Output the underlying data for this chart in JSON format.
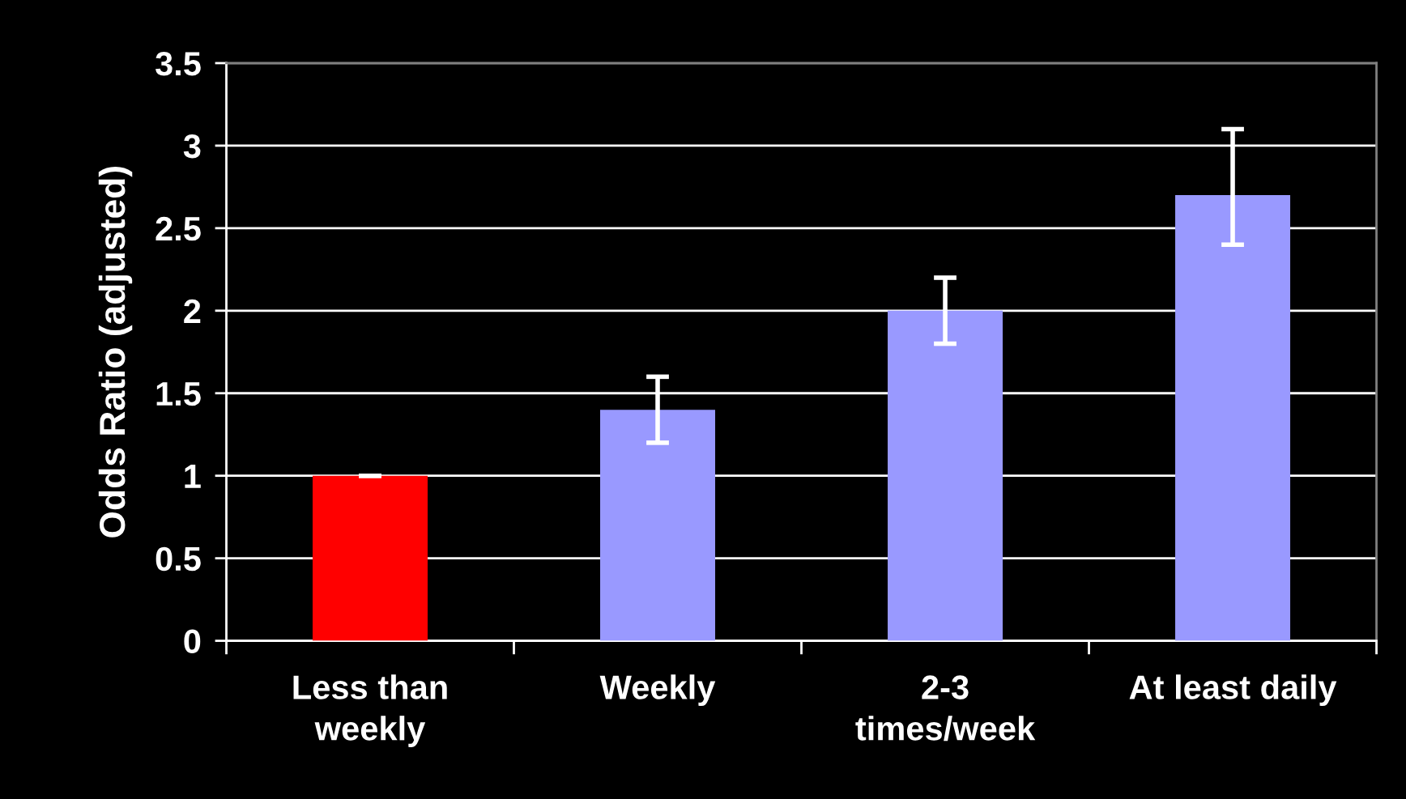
{
  "chart_data": {
    "type": "bar",
    "ylabel": "Odds Ratio (adjusted)",
    "categories": [
      "Less than\nweekly",
      "Weekly",
      "2-3\ntimes/week",
      "At least daily"
    ],
    "values": [
      1.0,
      1.4,
      2.0,
      2.7
    ],
    "colors": [
      "#ff0000",
      "#9999ff",
      "#9999ff",
      "#9999ff"
    ],
    "errors": [
      [
        1.0,
        1.0
      ],
      [
        1.2,
        1.6
      ],
      [
        1.8,
        2.2
      ],
      [
        2.4,
        3.1
      ]
    ],
    "ylim": [
      0,
      3.5
    ],
    "yticks": [
      0,
      0.5,
      1,
      1.5,
      2,
      2.5,
      3,
      3.5
    ],
    "grid": "y",
    "legend": false
  }
}
